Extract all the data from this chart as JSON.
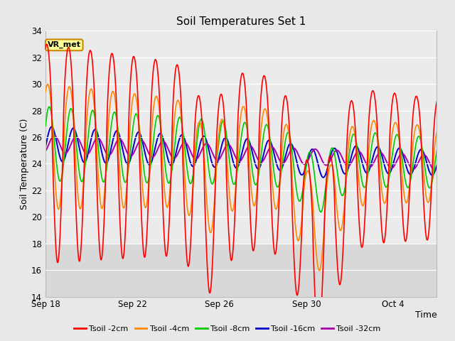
{
  "title": "Soil Temperatures Set 1",
  "xlabel": "Time",
  "ylabel": "Soil Temperature (C)",
  "ylim": [
    14,
    34
  ],
  "yticks": [
    14,
    16,
    18,
    20,
    22,
    24,
    26,
    28,
    30,
    32,
    34
  ],
  "fig_bg_color": "#e8e8e8",
  "plot_bg_light": "#ebebeb",
  "plot_bg_dark": "#d8d8d8",
  "grid_color": "#ffffff",
  "series": [
    {
      "label": "Tsoil -2cm",
      "color": "#ff0000"
    },
    {
      "label": "Tsoil -4cm",
      "color": "#ff8800"
    },
    {
      "label": "Tsoil -8cm",
      "color": "#00cc00"
    },
    {
      "label": "Tsoil -16cm",
      "color": "#0000cc"
    },
    {
      "label": "Tsoil -32cm",
      "color": "#aa00aa"
    }
  ],
  "annotation_text": "VR_met",
  "annotation_bg": "#ffff99",
  "annotation_edge": "#cc8800",
  "xtick_labels": [
    "Sep 18",
    "Sep 22",
    "Sep 26",
    "Sep 30",
    "Oct 4"
  ],
  "xtick_positions": [
    0,
    4,
    8,
    12,
    16
  ],
  "n_days": 18,
  "base_temp": 25.5,
  "base_decline": 0.08,
  "dark_band_below": 18.0,
  "figsize": [
    6.4,
    4.8
  ],
  "dpi": 100
}
